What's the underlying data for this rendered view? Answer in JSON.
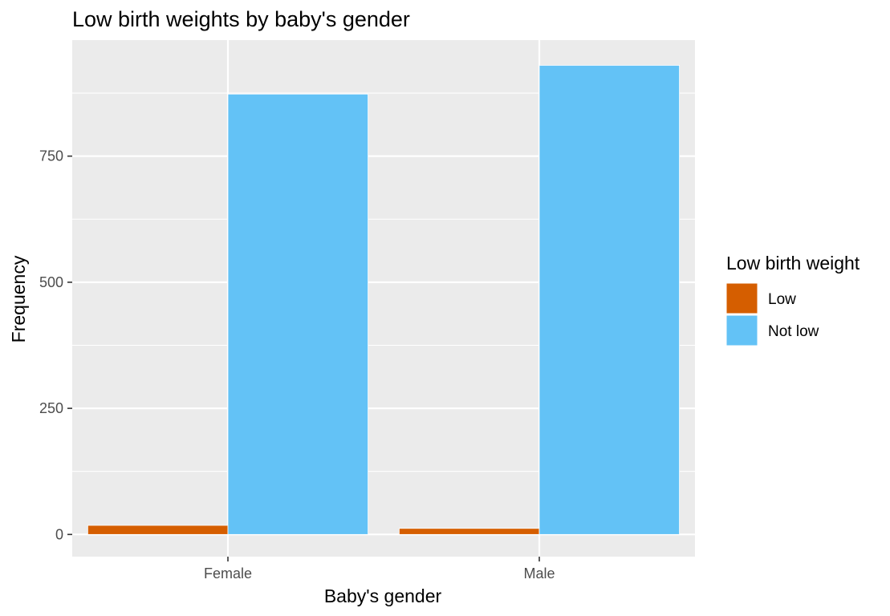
{
  "chart_data": {
    "type": "bar",
    "title": "Low birth weights by baby's gender",
    "xlabel": "Baby's gender",
    "ylabel": "Frequency",
    "categories": [
      "Female",
      "Male"
    ],
    "series": [
      {
        "name": "Low",
        "values": [
          18,
          12
        ],
        "color": "#D55E00"
      },
      {
        "name": "Not low",
        "values": [
          873,
          930
        ],
        "color": "#63C2F6"
      }
    ],
    "ylim": [
      -44,
      980
    ],
    "yticks": [
      0,
      250,
      500,
      750
    ],
    "yticks_labels": [
      "0",
      "250",
      "500",
      "750"
    ],
    "grid": true,
    "legend": {
      "title": "Low birth weight",
      "placement": "right"
    },
    "panel_background": "#EBEBEB"
  }
}
